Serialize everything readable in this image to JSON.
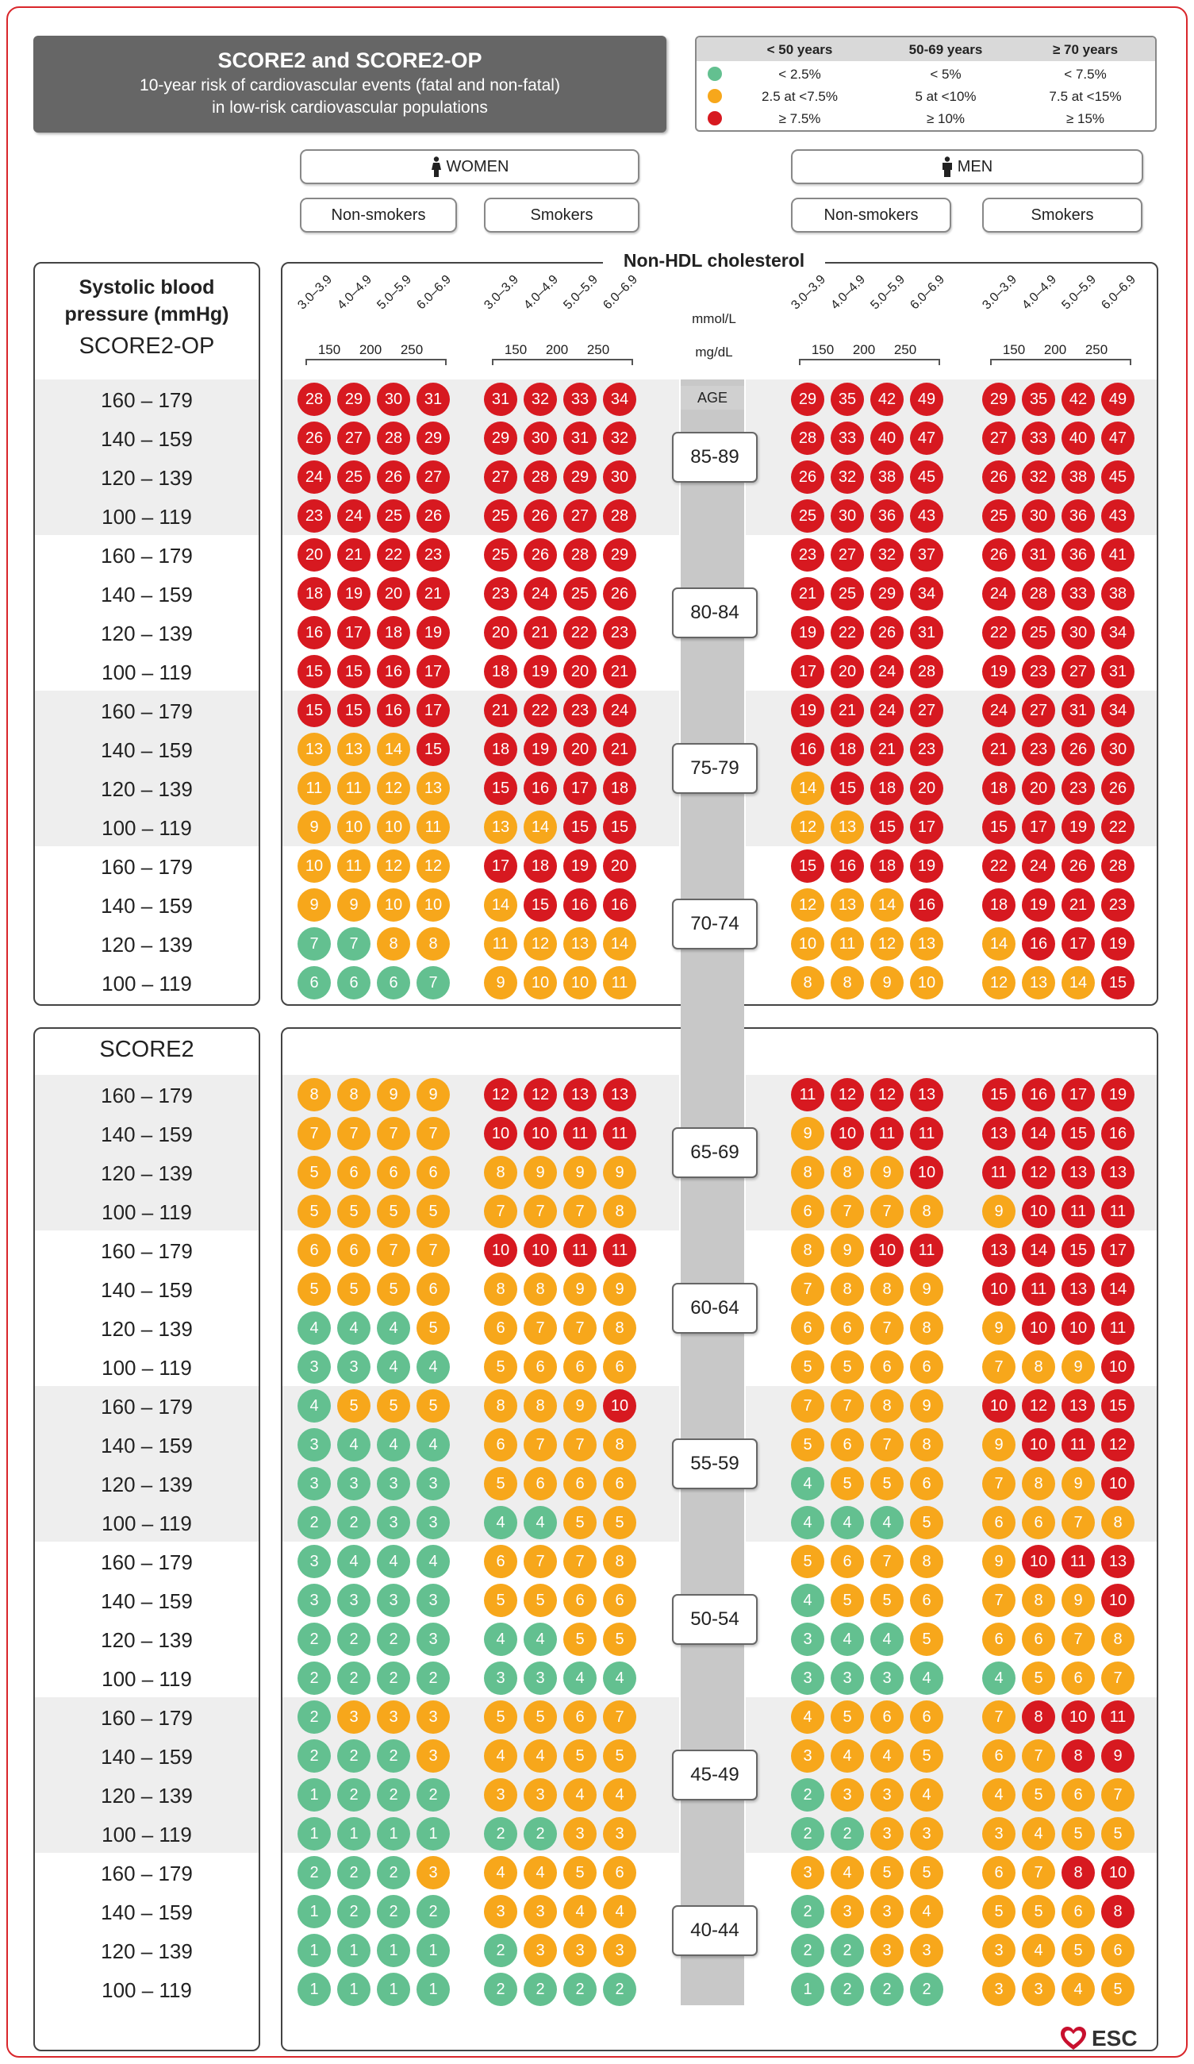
{
  "header": {
    "title": "SCORE2 and SCORE2-OP",
    "subtitle_line1": "10-year risk of cardiovascular events (fatal and non-fatal)",
    "subtitle_line2": "in low-risk cardiovascular populations"
  },
  "legend": {
    "columns": [
      "< 50 years",
      "50-69 years",
      "≥ 70 years"
    ],
    "rows": [
      {
        "color": "#63c090",
        "cells": [
          "< 2.5%",
          "< 5%",
          "< 7.5%"
        ]
      },
      {
        "color": "#f7a71b",
        "cells": [
          "2.5 at <7.5%",
          "5 at <10%",
          "7.5 at <15%"
        ]
      },
      {
        "color": "#d71920",
        "cells": [
          "≥ 7.5%",
          "≥ 10%",
          "≥ 15%"
        ]
      }
    ]
  },
  "groups": {
    "women": "WOMEN",
    "men": "MEN",
    "non_smokers": "Non-smokers",
    "smokers": "Smokers"
  },
  "cholesterol": {
    "title": "Non-HDL cholesterol",
    "mmol_ticks": [
      "3.0–3.9",
      "4.0–4.9",
      "5.0–5.9",
      "6.0–6.9"
    ],
    "mgdl_ticks": [
      "150",
      "200",
      "250"
    ],
    "unit_mmol": "mmol/L",
    "unit_mgdl": "mg/dL"
  },
  "labels": {
    "sbp": "Systolic blood",
    "sbp2": "pressure (mmHg)",
    "score_op": "SCORE2-OP",
    "score2": "SCORE2",
    "age": "AGE"
  },
  "sbp_rows": [
    "160 – 179",
    "140 – 159",
    "120 – 139",
    "100 – 119"
  ],
  "colors": {
    "green": "#63c090",
    "orange": "#f7a71b",
    "red": "#d71920"
  },
  "age_groups": [
    {
      "age": "85-89",
      "rows": [
        [
          28,
          29,
          30,
          31,
          31,
          32,
          33,
          34,
          29,
          35,
          42,
          49,
          29,
          35,
          42,
          49
        ],
        [
          26,
          27,
          28,
          29,
          29,
          30,
          31,
          32,
          28,
          33,
          40,
          47,
          27,
          33,
          40,
          47
        ],
        [
          24,
          25,
          26,
          27,
          27,
          28,
          29,
          30,
          26,
          32,
          38,
          45,
          26,
          32,
          38,
          45
        ],
        [
          23,
          24,
          25,
          26,
          25,
          26,
          27,
          28,
          25,
          30,
          36,
          43,
          25,
          30,
          36,
          43
        ]
      ]
    },
    {
      "age": "80-84",
      "rows": [
        [
          20,
          21,
          22,
          23,
          25,
          26,
          28,
          29,
          23,
          27,
          32,
          37,
          26,
          31,
          36,
          41
        ],
        [
          18,
          19,
          20,
          21,
          23,
          24,
          25,
          26,
          21,
          25,
          29,
          34,
          24,
          28,
          33,
          38
        ],
        [
          16,
          17,
          18,
          19,
          20,
          21,
          22,
          23,
          19,
          22,
          26,
          31,
          22,
          25,
          30,
          34
        ],
        [
          15,
          15,
          16,
          17,
          18,
          19,
          20,
          21,
          17,
          20,
          24,
          28,
          19,
          23,
          27,
          31
        ]
      ]
    },
    {
      "age": "75-79",
      "rows": [
        [
          15,
          15,
          16,
          17,
          21,
          22,
          23,
          24,
          19,
          21,
          24,
          27,
          24,
          27,
          31,
          34
        ],
        [
          13,
          13,
          14,
          15,
          18,
          19,
          20,
          21,
          16,
          18,
          21,
          23,
          21,
          23,
          26,
          30
        ],
        [
          11,
          11,
          12,
          13,
          15,
          16,
          17,
          18,
          14,
          15,
          18,
          20,
          18,
          20,
          23,
          26
        ],
        [
          9,
          10,
          10,
          11,
          13,
          14,
          15,
          15,
          12,
          13,
          15,
          17,
          15,
          17,
          19,
          22
        ]
      ]
    },
    {
      "age": "70-74",
      "rows": [
        [
          10,
          11,
          12,
          12,
          17,
          18,
          19,
          20,
          15,
          16,
          18,
          19,
          22,
          24,
          26,
          28
        ],
        [
          9,
          9,
          10,
          10,
          14,
          15,
          16,
          16,
          12,
          13,
          14,
          16,
          18,
          19,
          21,
          23
        ],
        [
          7,
          7,
          8,
          8,
          11,
          12,
          13,
          14,
          10,
          11,
          12,
          13,
          14,
          16,
          17,
          19
        ],
        [
          6,
          6,
          6,
          7,
          9,
          10,
          10,
          11,
          8,
          8,
          9,
          10,
          12,
          13,
          14,
          15
        ]
      ]
    },
    {
      "age": "65-69",
      "rows": [
        [
          8,
          8,
          9,
          9,
          12,
          12,
          13,
          13,
          11,
          12,
          12,
          13,
          15,
          16,
          17,
          19
        ],
        [
          7,
          7,
          7,
          7,
          10,
          10,
          11,
          11,
          9,
          10,
          11,
          11,
          13,
          14,
          15,
          16
        ],
        [
          5,
          6,
          6,
          6,
          8,
          9,
          9,
          9,
          8,
          8,
          9,
          10,
          11,
          12,
          13,
          13
        ],
        [
          5,
          5,
          5,
          5,
          7,
          7,
          7,
          8,
          6,
          7,
          7,
          8,
          9,
          10,
          11,
          11
        ]
      ]
    },
    {
      "age": "60-64",
      "rows": [
        [
          6,
          6,
          7,
          7,
          10,
          10,
          11,
          11,
          8,
          9,
          10,
          11,
          13,
          14,
          15,
          17
        ],
        [
          5,
          5,
          5,
          6,
          8,
          8,
          9,
          9,
          7,
          8,
          8,
          9,
          10,
          11,
          13,
          14
        ],
        [
          4,
          4,
          4,
          5,
          6,
          7,
          7,
          8,
          6,
          6,
          7,
          8,
          9,
          10,
          10,
          11
        ],
        [
          3,
          3,
          4,
          4,
          5,
          6,
          6,
          6,
          5,
          5,
          6,
          6,
          7,
          8,
          9,
          10
        ]
      ]
    },
    {
      "age": "55-59",
      "rows": [
        [
          4,
          5,
          5,
          5,
          8,
          8,
          9,
          10,
          7,
          7,
          8,
          9,
          10,
          12,
          13,
          15
        ],
        [
          3,
          4,
          4,
          4,
          6,
          7,
          7,
          8,
          5,
          6,
          7,
          8,
          9,
          10,
          11,
          12
        ],
        [
          3,
          3,
          3,
          3,
          5,
          6,
          6,
          6,
          4,
          5,
          5,
          6,
          7,
          8,
          9,
          10
        ],
        [
          2,
          2,
          3,
          3,
          4,
          4,
          5,
          5,
          4,
          4,
          4,
          5,
          6,
          6,
          7,
          8
        ]
      ]
    },
    {
      "age": "50-54",
      "rows": [
        [
          3,
          4,
          4,
          4,
          6,
          7,
          7,
          8,
          5,
          6,
          7,
          8,
          9,
          10,
          11,
          13
        ],
        [
          3,
          3,
          3,
          3,
          5,
          5,
          6,
          6,
          4,
          5,
          5,
          6,
          7,
          8,
          9,
          10
        ],
        [
          2,
          2,
          2,
          3,
          4,
          4,
          5,
          5,
          3,
          4,
          4,
          5,
          6,
          6,
          7,
          8
        ],
        [
          2,
          2,
          2,
          2,
          3,
          3,
          4,
          4,
          3,
          3,
          3,
          4,
          4,
          5,
          6,
          7
        ]
      ]
    },
    {
      "age": "45-49",
      "rows": [
        [
          2,
          3,
          3,
          3,
          5,
          5,
          6,
          7,
          4,
          5,
          6,
          6,
          7,
          8,
          10,
          11
        ],
        [
          2,
          2,
          2,
          3,
          4,
          4,
          5,
          5,
          3,
          4,
          4,
          5,
          6,
          7,
          8,
          9
        ],
        [
          1,
          2,
          2,
          2,
          3,
          3,
          4,
          4,
          2,
          3,
          3,
          4,
          4,
          5,
          6,
          7
        ],
        [
          1,
          1,
          1,
          1,
          2,
          2,
          3,
          3,
          2,
          2,
          3,
          3,
          3,
          4,
          5,
          5
        ]
      ]
    },
    {
      "age": "40-44",
      "rows": [
        [
          2,
          2,
          2,
          3,
          4,
          4,
          5,
          6,
          3,
          4,
          5,
          5,
          6,
          7,
          8,
          10
        ],
        [
          1,
          2,
          2,
          2,
          3,
          3,
          4,
          4,
          2,
          3,
          3,
          4,
          5,
          5,
          6,
          8
        ],
        [
          1,
          1,
          1,
          1,
          2,
          3,
          3,
          3,
          2,
          2,
          3,
          3,
          3,
          4,
          5,
          6
        ],
        [
          1,
          1,
          1,
          1,
          2,
          2,
          2,
          2,
          1,
          2,
          2,
          2,
          3,
          3,
          4,
          5
        ]
      ]
    }
  ],
  "logo": {
    "text": "ESC"
  }
}
